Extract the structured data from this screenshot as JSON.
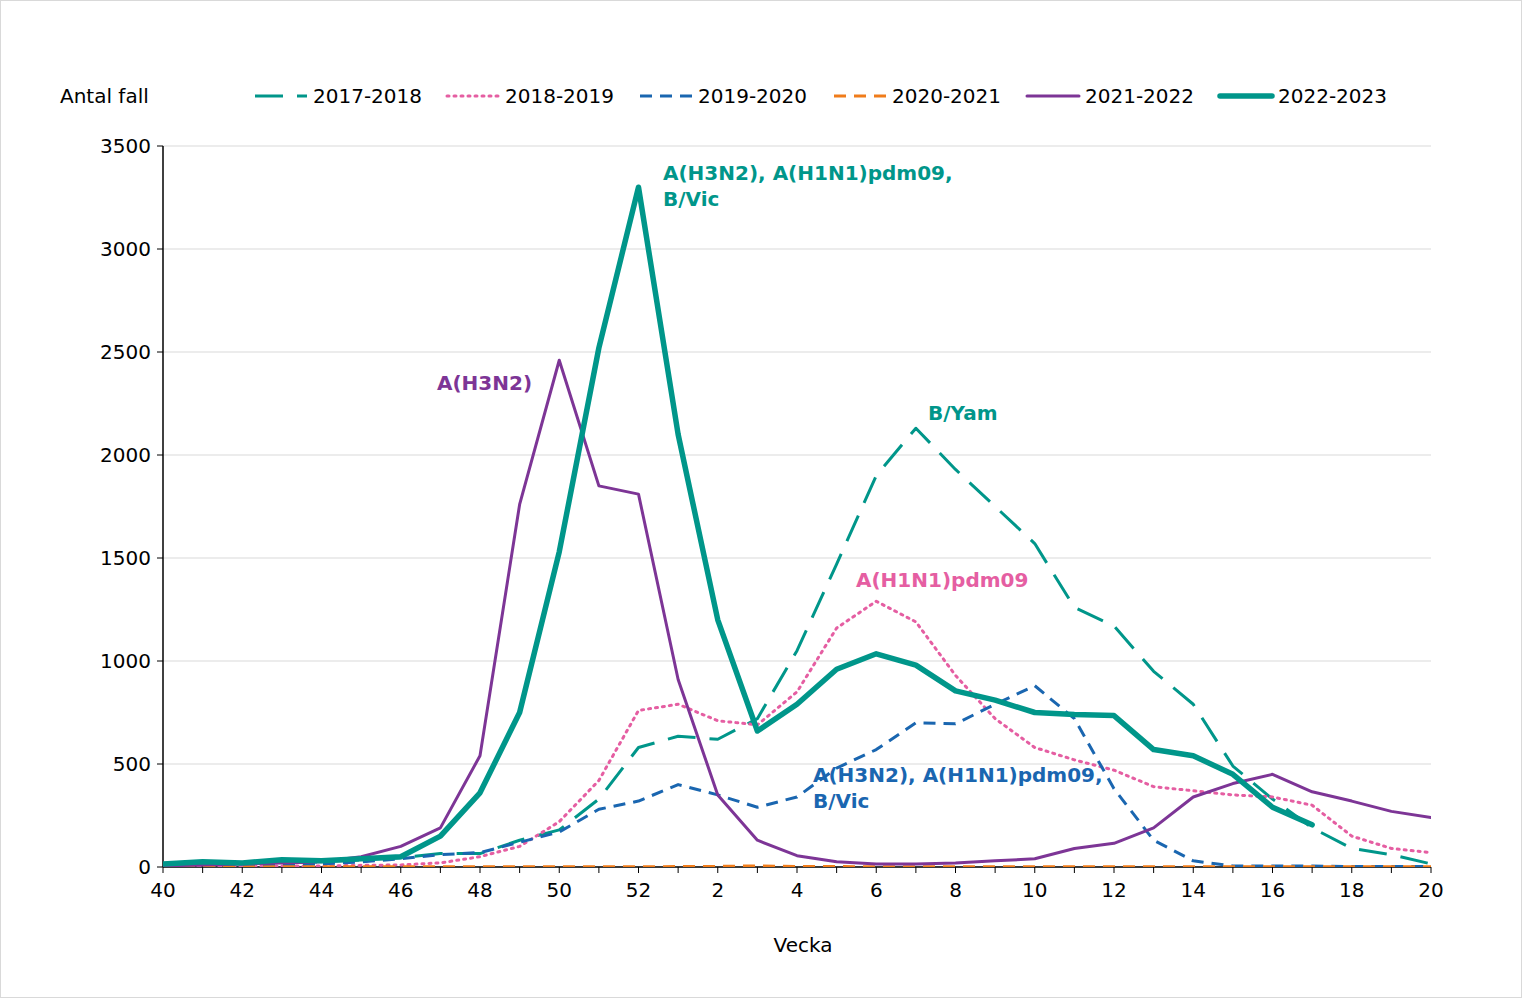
{
  "chart_data": {
    "type": "line",
    "y_label": "Antal fall",
    "x_label": "Vecka",
    "categories": [
      "40",
      null,
      "42",
      null,
      "44",
      null,
      "46",
      null,
      "48",
      null,
      "50",
      null,
      "52",
      null,
      "2",
      null,
      "4",
      null,
      "6",
      null,
      "8",
      null,
      "10",
      null,
      "12",
      null,
      "14",
      null,
      "16",
      null,
      "18",
      null,
      "20"
    ],
    "ylim": [
      0,
      3500
    ],
    "yticks": [
      0,
      500,
      1000,
      1500,
      2000,
      2500,
      3000,
      3500
    ],
    "grid": true,
    "legend": "top",
    "series": [
      {
        "name": "2017-2018",
        "color": "#00968a",
        "line_style": "long-dash",
        "values": [
          10,
          15,
          15,
          20,
          25,
          35,
          45,
          65,
          65,
          130,
          180,
          330,
          580,
          635,
          620,
          720,
          1050,
          1470,
          1900,
          2130,
          1930,
          1750,
          1570,
          1260,
          1170,
          950,
          790,
          490,
          330,
          190,
          90,
          60,
          15
        ]
      },
      {
        "name": "2018-2019",
        "color": "#e55ea2",
        "line_style": "dotted",
        "values": [
          2,
          3,
          5,
          5,
          5,
          8,
          10,
          20,
          50,
          100,
          220,
          420,
          760,
          790,
          710,
          690,
          850,
          1160,
          1290,
          1190,
          930,
          720,
          580,
          520,
          470,
          390,
          370,
          350,
          340,
          300,
          150,
          90,
          70
        ]
      },
      {
        "name": "2019-2020",
        "color": "#1a66b0",
        "line_style": "dashed",
        "values": [
          5,
          5,
          5,
          10,
          15,
          25,
          40,
          60,
          70,
          120,
          170,
          280,
          320,
          400,
          350,
          290,
          340,
          480,
          570,
          700,
          695,
          790,
          880,
          720,
          380,
          130,
          30,
          5,
          5,
          5,
          2,
          2,
          2
        ]
      },
      {
        "name": "2020-2021",
        "color": "#f07c1a",
        "line_style": "dashed",
        "values": [
          0,
          0,
          0,
          1,
          1,
          1,
          1,
          1,
          1,
          1,
          1,
          1,
          1,
          2,
          3,
          5,
          2,
          2,
          1,
          1,
          1,
          1,
          1,
          1,
          1,
          1,
          1,
          1,
          1,
          1,
          1,
          1,
          1
        ]
      },
      {
        "name": "2021-2022",
        "color": "#7d3596",
        "line_style": "solid",
        "values": [
          5,
          10,
          15,
          20,
          25,
          50,
          100,
          190,
          540,
          1760,
          2460,
          1850,
          1810,
          910,
          350,
          130,
          55,
          25,
          15,
          15,
          20,
          30,
          40,
          90,
          115,
          190,
          340,
          405,
          450,
          365,
          320,
          270,
          240
        ]
      },
      {
        "name": "2022-2023",
        "color": "#00968a",
        "line_style": "thick",
        "values": [
          15,
          25,
          20,
          35,
          30,
          40,
          50,
          150,
          360,
          750,
          1530,
          2520,
          3300,
          2100,
          1200,
          660,
          790,
          960,
          1035,
          980,
          855,
          810,
          750,
          740,
          735,
          570,
          540,
          450,
          290,
          205,
          null,
          null,
          null
        ]
      }
    ],
    "annotations": [
      {
        "lines": [
          "A(H3N2), A(H1N1)pdm09,",
          "B/Vic"
        ],
        "color": "#00968a"
      },
      {
        "lines": [
          "A(H3N2)"
        ],
        "color": "#7d3596"
      },
      {
        "lines": [
          "B/Yam"
        ],
        "color": "#00968a"
      },
      {
        "lines": [
          "A(H1N1)pdm09"
        ],
        "color": "#e55ea2"
      },
      {
        "lines": [
          "A(H3N2), A(H1N1)pdm09,",
          "B/Vic"
        ],
        "color": "#1a66b0"
      }
    ]
  }
}
